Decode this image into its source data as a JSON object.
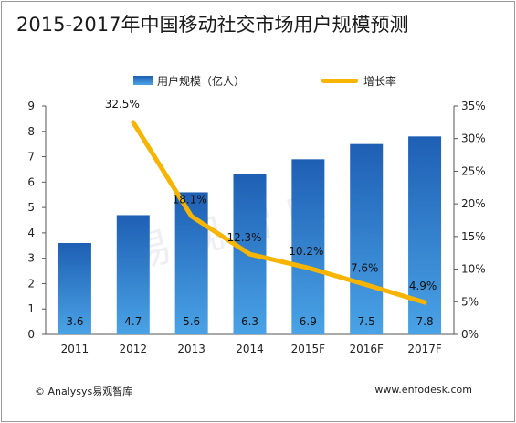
{
  "chart_data": {
    "type": "bar",
    "title": "2015-2017年中国移动社交市场用户规模预测",
    "categories": [
      "2011",
      "2012",
      "2013",
      "2014",
      "2015F",
      "2016F",
      "2017F"
    ],
    "series": [
      {
        "name": "用户规模（亿人）",
        "type": "bar",
        "axis": "left",
        "values": [
          3.6,
          4.7,
          5.6,
          6.3,
          6.9,
          7.5,
          7.8
        ],
        "value_labels": [
          "3.6",
          "4.7",
          "5.6",
          "6.3",
          "6.9",
          "7.5",
          "7.8"
        ]
      },
      {
        "name": "增长率",
        "type": "line",
        "axis": "right",
        "values": [
          null,
          32.5,
          18.1,
          12.3,
          10.2,
          7.6,
          4.9
        ],
        "value_labels": [
          "",
          "32.5%",
          "18.1%",
          "12.3%",
          "10.2%",
          "7.6%",
          "4.9%"
        ]
      }
    ],
    "y_left": {
      "range": [
        0,
        9
      ],
      "ticks": [
        "0",
        "1",
        "2",
        "3",
        "4",
        "5",
        "6",
        "7",
        "8",
        "9"
      ]
    },
    "y_right": {
      "range": [
        0,
        35
      ],
      "ticks": [
        "0%",
        "5%",
        "10%",
        "15%",
        "20%",
        "25%",
        "30%",
        "35%"
      ]
    },
    "grid": false,
    "legend_position": "top",
    "colors": {
      "bar_top": "#1e5fb4",
      "bar_bottom": "#4aa3e6",
      "line": "#f7b400"
    }
  },
  "legend": {
    "bar_label": "用户规模（亿人）",
    "line_label": "增长率"
  },
  "footer": {
    "copyright": "© Analysys易观智库",
    "website": "www.enfodesk.com"
  },
  "watermark": "易观智库"
}
